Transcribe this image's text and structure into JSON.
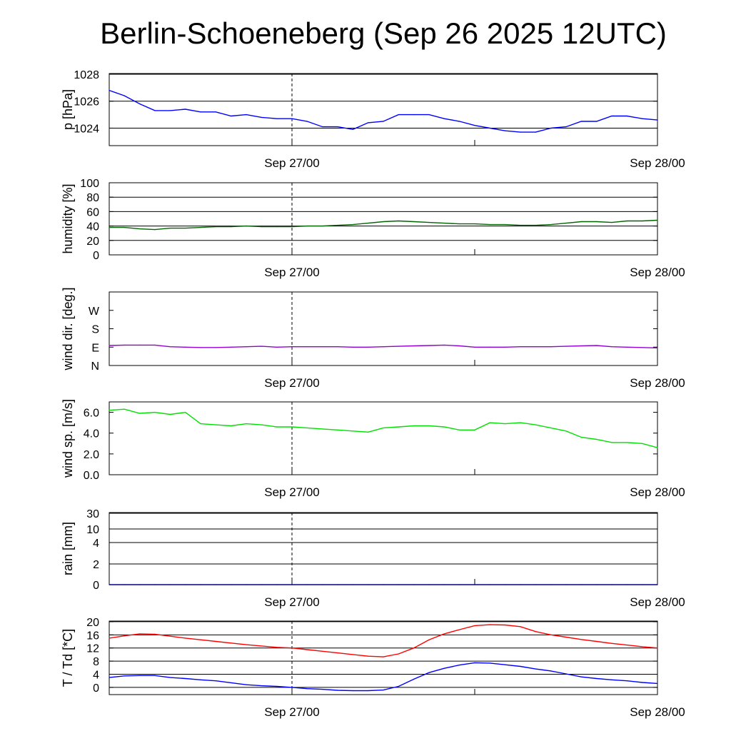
{
  "chart_data": {
    "type": "line",
    "title": "Berlin-Schoeneberg (Sep 26 2025 12UTC)",
    "x_unit": "hours since Sep 26 12UTC",
    "x": [
      0,
      1,
      2,
      3,
      4,
      5,
      6,
      7,
      8,
      9,
      10,
      11,
      12,
      13,
      14,
      15,
      16,
      17,
      18,
      19,
      20,
      21,
      22,
      23,
      24,
      25,
      26,
      27,
      28,
      29,
      30,
      31,
      32,
      33,
      34,
      35,
      36
    ],
    "x_range": [
      0,
      36
    ],
    "x_tick_labels": [
      {
        "hour": 12,
        "label": "Sep 27/00"
      },
      {
        "hour": 36,
        "label": "Sep 28/00"
      }
    ],
    "now_marker_hour": 12,
    "panels": [
      {
        "id": "pressure",
        "ylabel": "p [hPa]",
        "ylim": [
          1022.7,
          1028.05
        ],
        "ticks": [
          {
            "v": 1024,
            "label": "1024"
          },
          {
            "v": 1026,
            "label": "1026"
          },
          {
            "v": 1028,
            "label": "1028"
          }
        ],
        "grid": [
          1024,
          1026,
          1028
        ],
        "series": [
          {
            "name": "pressure",
            "color": "#0000ff",
            "values": [
              1026.8,
              1026.4,
              1025.8,
              1025.3,
              1025.3,
              1025.4,
              1025.2,
              1025.2,
              1024.9,
              1025.0,
              1024.8,
              1024.7,
              1024.7,
              1024.5,
              1024.1,
              1024.1,
              1023.9,
              1024.4,
              1024.5,
              1025.0,
              1025.0,
              1025.0,
              1024.7,
              1024.5,
              1024.2,
              1024.0,
              1023.8,
              1023.7,
              1023.7,
              1024.0,
              1024.1,
              1024.5,
              1024.5,
              1024.9,
              1024.9,
              1024.7,
              1024.6
            ]
          }
        ]
      },
      {
        "id": "humidity",
        "ylabel": "humidity [%]",
        "ylim": [
          0,
          100
        ],
        "ticks": [
          {
            "v": 0,
            "label": "0"
          },
          {
            "v": 20,
            "label": "20"
          },
          {
            "v": 40,
            "label": "40"
          },
          {
            "v": 60,
            "label": "60"
          },
          {
            "v": 80,
            "label": "80"
          },
          {
            "v": 100,
            "label": "100"
          }
        ],
        "grid": [
          20,
          40,
          60,
          80,
          100
        ],
        "series": [
          {
            "name": "humidity",
            "color": "#006400",
            "values": [
              38,
              38,
              36,
              35,
              37,
              37,
              38,
              39,
              39,
              40,
              39,
              39,
              39,
              40,
              40,
              41,
              42,
              44,
              46,
              47,
              46,
              45,
              44,
              43,
              43,
              42,
              42,
              41,
              41,
              42,
              44,
              46,
              46,
              45,
              47,
              47,
              48
            ]
          }
        ]
      },
      {
        "id": "wind_dir",
        "ylabel": "wind dir. [deg.]",
        "ylim": [
          0,
          360
        ],
        "ticks": [
          {
            "v": 0,
            "label": "N"
          },
          {
            "v": 90,
            "label": "E"
          },
          {
            "v": 180,
            "label": "S"
          },
          {
            "v": 270,
            "label": "W"
          }
        ],
        "grid": [],
        "series": [
          {
            "name": "wind direction",
            "color": "#9400d3",
            "values": [
              98,
              100,
              100,
              100,
              92,
              90,
              88,
              88,
              90,
              92,
              94,
              90,
              92,
              92,
              92,
              92,
              90,
              90,
              92,
              94,
              96,
              98,
              100,
              96,
              90,
              90,
              90,
              92,
              92,
              92,
              94,
              96,
              98,
              92,
              90,
              88,
              86
            ]
          }
        ]
      },
      {
        "id": "wind_speed",
        "ylabel": "wind sp. [m/s]",
        "ylim": [
          0,
          7
        ],
        "ticks": [
          {
            "v": 0,
            "label": "0.0"
          },
          {
            "v": 2,
            "label": "2.0"
          },
          {
            "v": 4,
            "label": "4.0"
          },
          {
            "v": 6,
            "label": "6.0"
          }
        ],
        "grid": [],
        "series": [
          {
            "name": "wind speed",
            "color": "#00e000",
            "values": [
              6.2,
              6.3,
              5.9,
              6.0,
              5.8,
              6.0,
              4.9,
              4.8,
              4.7,
              4.9,
              4.8,
              4.6,
              4.6,
              4.5,
              4.4,
              4.3,
              4.2,
              4.1,
              4.5,
              4.6,
              4.7,
              4.7,
              4.6,
              4.3,
              4.3,
              5.0,
              4.9,
              5.0,
              4.8,
              4.5,
              4.2,
              3.6,
              3.4,
              3.1,
              3.1,
              3.0,
              2.6
            ]
          }
        ]
      },
      {
        "id": "rain",
        "ylabel": "rain [mm]",
        "ylim": [
          0,
          31
        ],
        "scale": "nonlinear",
        "ticks": [
          {
            "v": 0,
            "label": "0"
          },
          {
            "v": 2,
            "label": "2"
          },
          {
            "v": 4,
            "label": "4"
          },
          {
            "v": 10,
            "label": "10"
          },
          {
            "v": 30,
            "label": "30"
          }
        ],
        "grid": [
          2,
          4,
          10,
          30
        ],
        "series": [
          {
            "name": "rain",
            "color": "#00008b",
            "values": [
              0,
              0,
              0,
              0,
              0,
              0,
              0,
              0,
              0,
              0,
              0,
              0,
              0,
              0,
              0,
              0,
              0,
              0,
              0,
              0,
              0,
              0,
              0,
              0,
              0,
              0,
              0,
              0,
              0,
              0,
              0,
              0,
              0,
              0,
              0,
              0,
              0
            ]
          }
        ]
      },
      {
        "id": "temperature",
        "ylabel": "T / Td [*C]",
        "ylim": [
          -2.2,
          20.2
        ],
        "ticks": [
          {
            "v": 0,
            "label": "0"
          },
          {
            "v": 4,
            "label": "4"
          },
          {
            "v": 8,
            "label": "8"
          },
          {
            "v": 12,
            "label": "12"
          },
          {
            "v": 16,
            "label": "16"
          },
          {
            "v": 20,
            "label": "20"
          }
        ],
        "grid": [
          0,
          4,
          8,
          12,
          16,
          20
        ],
        "series": [
          {
            "name": "T",
            "color": "#ff0000",
            "values": [
              15,
              15.7,
              16.3,
              16.2,
              15.6,
              15,
              14.5,
              14,
              13.5,
              13,
              12.6,
              12.2,
              12,
              11.5,
              11,
              10.5,
              10,
              9.5,
              9.3,
              10.2,
              12,
              14.5,
              16.3,
              17.6,
              18.8,
              19.1,
              19,
              18.5,
              17,
              16,
              15.3,
              14.6,
              14,
              13.4,
              12.9,
              12.4,
              12
            ]
          },
          {
            "name": "Td",
            "color": "#0000ff",
            "values": [
              3,
              3.5,
              3.6,
              3.6,
              3,
              2.7,
              2.3,
              2,
              1.4,
              0.8,
              0.5,
              0.3,
              0,
              -0.4,
              -0.6,
              -0.9,
              -1,
              -1,
              -0.8,
              0.3,
              2.5,
              4.5,
              5.8,
              6.8,
              7.5,
              7.4,
              6.9,
              6.4,
              5.6,
              5,
              4.1,
              3.2,
              2.7,
              2.3,
              2.0,
              1.5,
              1.2
            ]
          }
        ]
      }
    ]
  }
}
